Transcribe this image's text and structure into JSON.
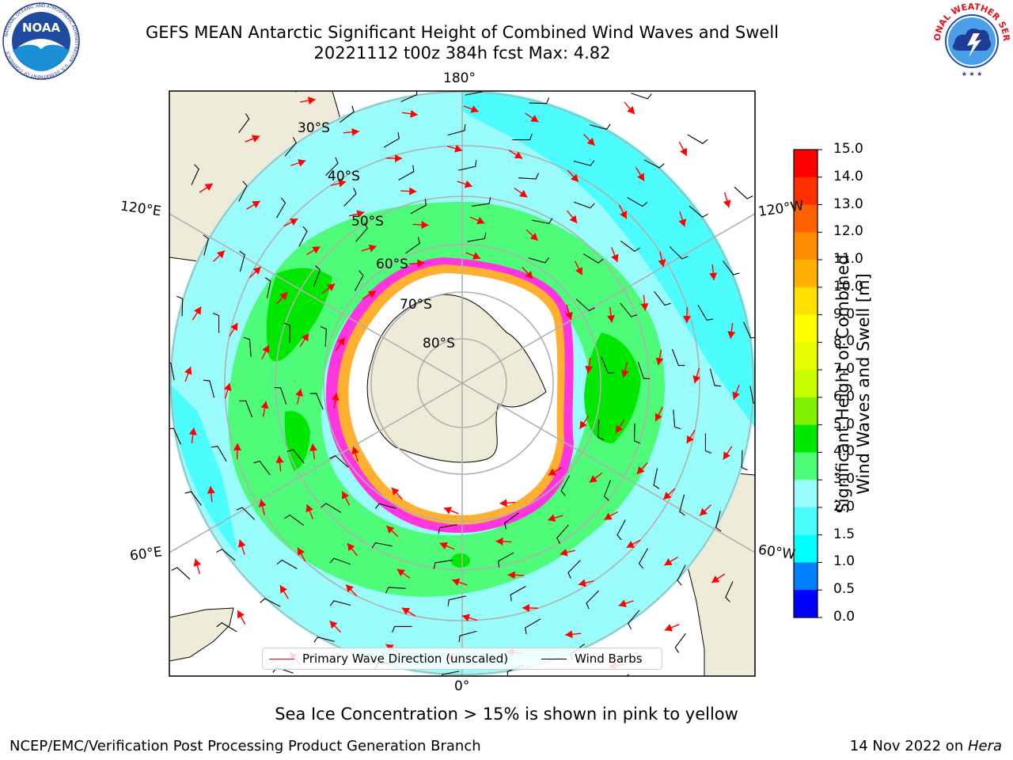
{
  "header": {
    "title_line1": "GEFS MEAN Antarctic Significant Height of Combined Wind Waves and Swell",
    "title_line2": "20221112 t00z 384h fcst   Max: 4.82"
  },
  "logos": {
    "left": {
      "text": "NOAA",
      "ring_text": "NATIONAL OCEANIC AND ATMOSPHERIC ADMINISTRATION · U.S. DEPARTMENT OF COMMERCE"
    },
    "right": {
      "ring_text": "NATIONAL WEATHER SERVICE"
    }
  },
  "map": {
    "longitude_labels": {
      "top": "180°",
      "bottom": "0°",
      "upper_left": "120°E",
      "upper_right": "120°W",
      "lower_left": "60°E",
      "lower_right": "60°W"
    },
    "latitude_labels": [
      "30°S",
      "40°S",
      "50°S",
      "60°S",
      "70°S",
      "80°S"
    ],
    "colors": {
      "land": "#efebd9",
      "ocean_1_5_2": "#4dfdfd",
      "ocean_2_3": "#99fcfb",
      "ocean_3_4": "#4efc7a",
      "ocean_4_5": "#00e800",
      "ice": "#ffffff",
      "ice_edge_pink": "#ff35e0",
      "ice_edge_yellow": "#ffb030",
      "wave_arrow": "#ff0000",
      "wind_barb": "#000000",
      "grid": "#b0b0b0"
    }
  },
  "legend": {
    "primary_wave": "Primary Wave Direction (unscaled)",
    "wind_barbs": "Wind Barbs"
  },
  "colorbar": {
    "label_line1": "Significant Height of Combined",
    "label_line2": "Wind Waves and Swell [m]",
    "ticks": [
      "15.0",
      "14.0",
      "13.0",
      "12.0",
      "11.0",
      "10.0",
      "9.0",
      "8.0",
      "7.0",
      "6.0",
      "5.0",
      "4.0",
      "3.0",
      "2.0",
      "1.5",
      "1.0",
      "0.5",
      "0.0"
    ],
    "colors": [
      "#ff0000",
      "#ff3000",
      "#ff6000",
      "#ff8c00",
      "#ffb000",
      "#ffe000",
      "#ffff00",
      "#e8ff00",
      "#c8ff00",
      "#80f000",
      "#00e800",
      "#4efc7a",
      "#99fcfb",
      "#4dfdfd",
      "#00ffff",
      "#0080ff",
      "#0000ff"
    ]
  },
  "notes": {
    "sea_ice": "Sea Ice Concentration > 15% is shown in pink to yellow"
  },
  "footer": {
    "left": "NCEP/EMC/Verification Post Processing Product Generation Branch",
    "right_date": "14 Nov 2022 on ",
    "right_host": "Hera"
  }
}
